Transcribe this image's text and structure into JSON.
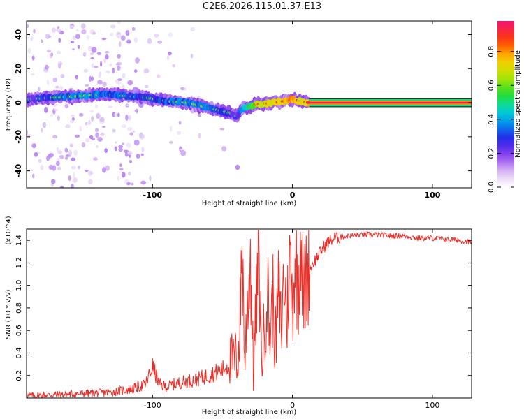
{
  "title": "C2E6.2026.115.01.37.E13",
  "chart_data": [
    {
      "type": "heatmap",
      "xlabel": "Height of straight line (km)",
      "ylabel": "Frequency (Hz)",
      "xlim": [
        -190,
        128
      ],
      "ylim": [
        -50,
        48
      ],
      "x_ticks": [
        -100,
        0,
        100
      ],
      "y_ticks": [
        -40,
        -20,
        0,
        20,
        40
      ],
      "colorbar": {
        "label": "Normalized spectral amplitude",
        "range": [
          0,
          0.98
        ],
        "ticks": [
          0.0,
          0.2,
          0.4,
          0.6,
          0.8
        ],
        "tick_labels": [
          "0.0",
          "0.2",
          "0.4",
          "0.6",
          "0.8"
        ]
      },
      "ridge": {
        "x": [
          -190,
          -170,
          -150,
          -135,
          -120,
          -105,
          -90,
          -75,
          -60,
          -45,
          -40,
          -35,
          -25,
          -15,
          -5,
          0,
          5,
          12,
          128
        ],
        "frequency": [
          2,
          3,
          4,
          5,
          4,
          3,
          1,
          0,
          -3,
          -6,
          -8,
          -3,
          -1,
          0,
          1,
          2,
          1,
          0,
          0
        ],
        "amplitude": [
          0.35,
          0.4,
          0.45,
          0.45,
          0.4,
          0.38,
          0.42,
          0.45,
          0.45,
          0.35,
          0.3,
          0.5,
          0.75,
          0.8,
          0.85,
          0.9,
          0.8,
          0.85,
          0.95
        ]
      },
      "steady_tone": {
        "x_start": 12,
        "x_end": 128,
        "frequency": 0,
        "amplitude": 0.95
      }
    },
    {
      "type": "line",
      "xlabel": "Height of straight line (km)",
      "ylabel": "SNR (10 * v/v)",
      "y_multiplier": "(x10^4)",
      "xlim": [
        -190,
        128
      ],
      "ylim": [
        0,
        1.5
      ],
      "x_ticks": [
        -100,
        0,
        100
      ],
      "y_ticks": [
        0.2,
        0.4,
        0.6,
        0.8,
        1.0,
        1.2,
        1.4
      ],
      "y_tick_labels": [
        "0.2",
        "0.4",
        "0.6",
        "0.8",
        "1.0",
        "1.2",
        "1.4"
      ],
      "series": [
        {
          "color": "#e8302a",
          "x": [
            -190,
            -170,
            -150,
            -130,
            -115,
            -105,
            -100,
            -95,
            -90,
            -80,
            -70,
            -60,
            -50,
            -45,
            -40,
            -38,
            -36,
            -34,
            -32,
            -30,
            -28,
            -26,
            -24,
            -22,
            -20,
            -18,
            -16,
            -14,
            -12,
            -10,
            -8,
            -6,
            -4,
            -2,
            0,
            2,
            4,
            6,
            8,
            10,
            15,
            20,
            25,
            30,
            40,
            50,
            60,
            70,
            80,
            90,
            100,
            110,
            120,
            128
          ],
          "y": [
            0.02,
            0.03,
            0.04,
            0.05,
            0.08,
            0.12,
            0.28,
            0.12,
            0.1,
            0.14,
            0.16,
            0.2,
            0.25,
            0.3,
            0.35,
            0.45,
            1.36,
            0.3,
            0.9,
            1.25,
            0.25,
            0.75,
            1.3,
            0.35,
            0.6,
            1.0,
            0.55,
            0.9,
            0.45,
            0.95,
            0.6,
            1.1,
            0.7,
            1.2,
            0.85,
            1.3,
            0.95,
            1.48,
            0.85,
            1.1,
            1.2,
            1.3,
            1.38,
            1.42,
            1.44,
            1.45,
            1.45,
            1.44,
            1.44,
            1.42,
            1.42,
            1.41,
            1.4,
            1.38
          ]
        }
      ]
    }
  ]
}
